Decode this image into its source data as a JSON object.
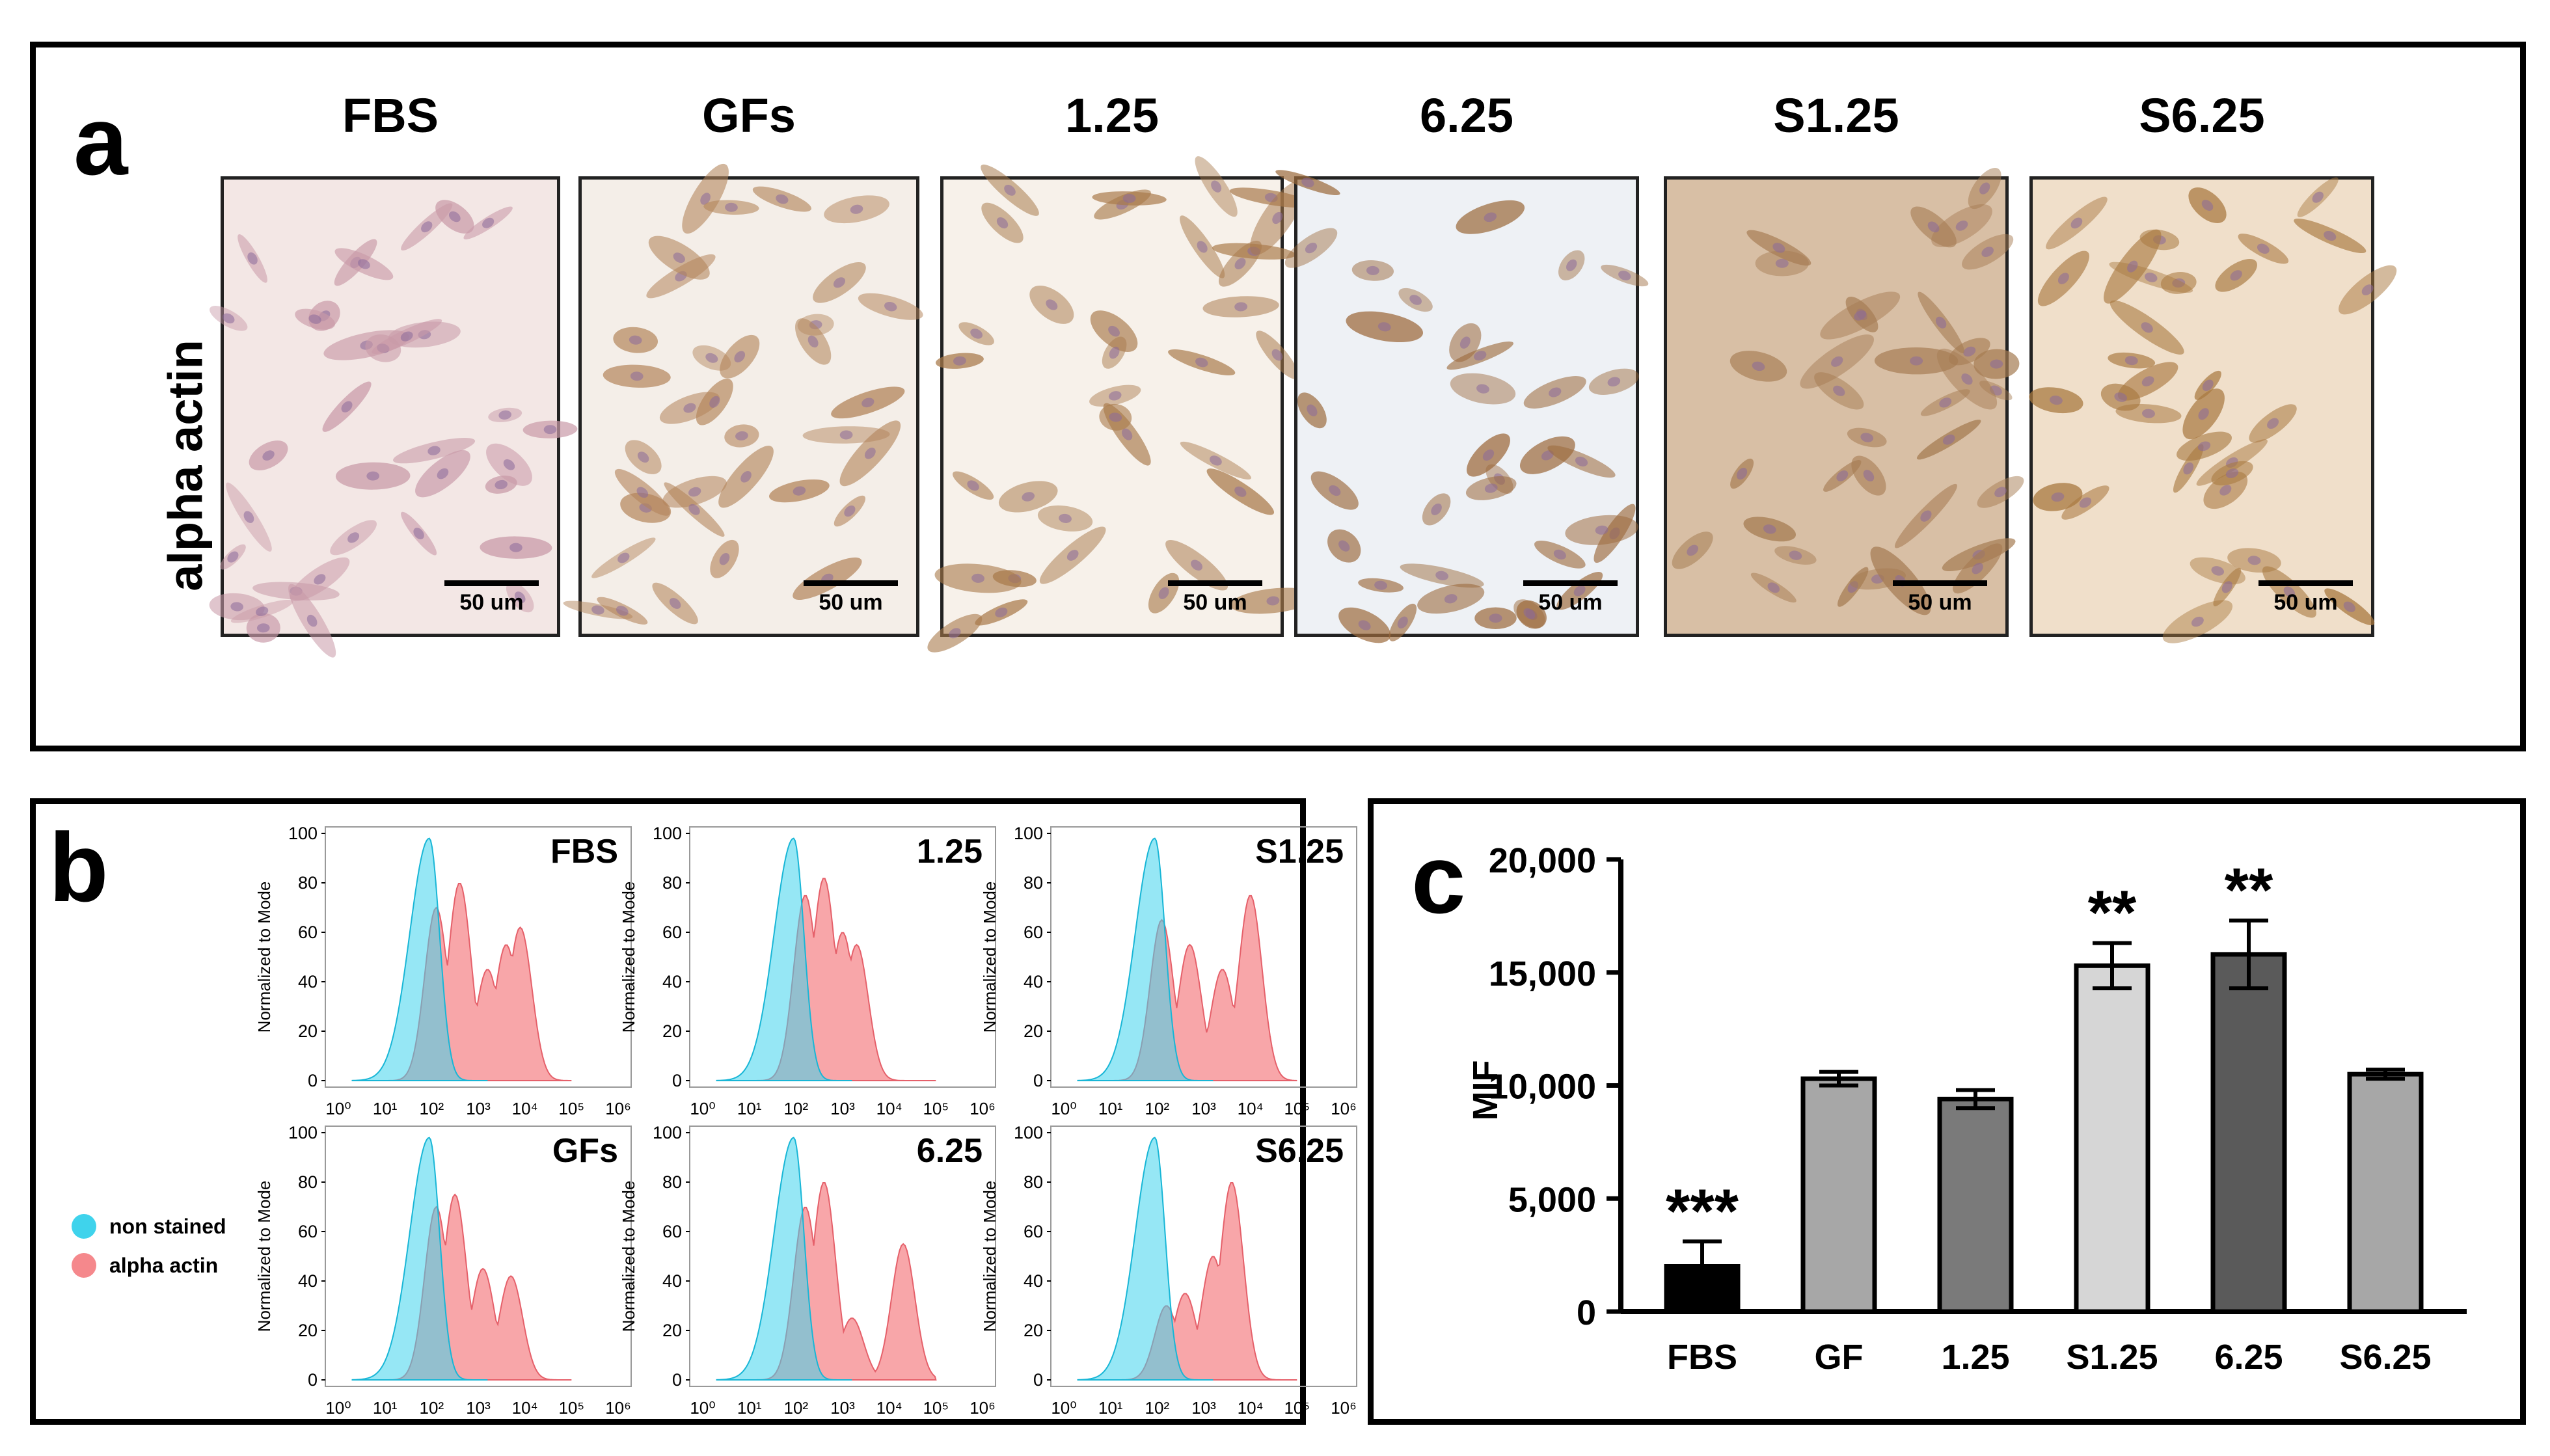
{
  "panel_a": {
    "label": "a",
    "row_label": "alpha  actin",
    "scale_bar": "50 um",
    "images": [
      {
        "title": "FBS",
        "color": "#c99aa8",
        "bg": "#f3e7e5"
      },
      {
        "title": "GFs",
        "color": "#b3845a",
        "bg": "#f4eee8"
      },
      {
        "title": "1.25",
        "color": "#a8794a",
        "bg": "#f7f1ea"
      },
      {
        "title": "6.25",
        "color": "#9c6a3c",
        "bg": "#eef1f5"
      },
      {
        "title": "S1.25",
        "color": "#a57b52",
        "bg": "#d8bfa5"
      },
      {
        "title": "S6.25",
        "color": "#a8783f",
        "bg": "#f0dfca"
      }
    ]
  },
  "panel_b": {
    "label": "b",
    "y_axis_label": "Normalized to Mode",
    "y_ticks": [
      "100",
      "80",
      "60",
      "40",
      "20",
      "0"
    ],
    "x_ticks": [
      "10⁰",
      "10¹",
      "10²",
      "10³",
      "10⁴",
      "10⁵",
      "10⁶"
    ],
    "legend": [
      {
        "label": "non stained",
        "color": "#3fd3ec"
      },
      {
        "label": "alpha actin",
        "color": "#f5888c"
      }
    ],
    "histograms": [
      {
        "title": "FBS",
        "stained_peaks": [
          [
            2.1,
            70
          ],
          [
            2.6,
            80
          ],
          [
            3.2,
            45
          ],
          [
            3.6,
            55
          ],
          [
            3.9,
            62
          ]
        ]
      },
      {
        "title": "1.25",
        "stained_peaks": [
          [
            2.2,
            75
          ],
          [
            2.6,
            82
          ],
          [
            3.0,
            60
          ],
          [
            3.3,
            55
          ]
        ]
      },
      {
        "title": "S1.25",
        "stained_peaks": [
          [
            2.1,
            65
          ],
          [
            2.7,
            55
          ],
          [
            3.4,
            45
          ],
          [
            4.0,
            75
          ]
        ]
      },
      {
        "title": "GFs",
        "stained_peaks": [
          [
            2.1,
            70
          ],
          [
            2.5,
            75
          ],
          [
            3.1,
            45
          ],
          [
            3.7,
            42
          ]
        ]
      },
      {
        "title": "6.25",
        "stained_peaks": [
          [
            2.2,
            70
          ],
          [
            2.6,
            80
          ],
          [
            3.2,
            25
          ],
          [
            4.3,
            55
          ]
        ]
      },
      {
        "title": "S6.25",
        "stained_peaks": [
          [
            2.2,
            30
          ],
          [
            2.6,
            35
          ],
          [
            3.2,
            50
          ],
          [
            3.6,
            80
          ]
        ]
      }
    ]
  },
  "chart_data": {
    "type": "bar",
    "panel_label": "c",
    "ylabel": "MIF",
    "ylim": [
      0,
      20000
    ],
    "y_ticks": [
      "0",
      "5,000",
      "10,000",
      "15,000",
      "20,000"
    ],
    "categories": [
      "FBS",
      "GF",
      "1.25",
      "S1.25",
      "6.25",
      "S6.25"
    ],
    "values": [
      2000,
      10300,
      9400,
      15300,
      15800,
      10500
    ],
    "errors": [
      1100,
      300,
      400,
      1000,
      1500,
      200
    ],
    "colors": [
      "#000000",
      "#a7a7a7",
      "#7a7a7a",
      "#d6d6d6",
      "#5a5a5a",
      "#a7a7a7"
    ],
    "annotations": [
      "***",
      "",
      "",
      "**",
      "**",
      ""
    ]
  }
}
